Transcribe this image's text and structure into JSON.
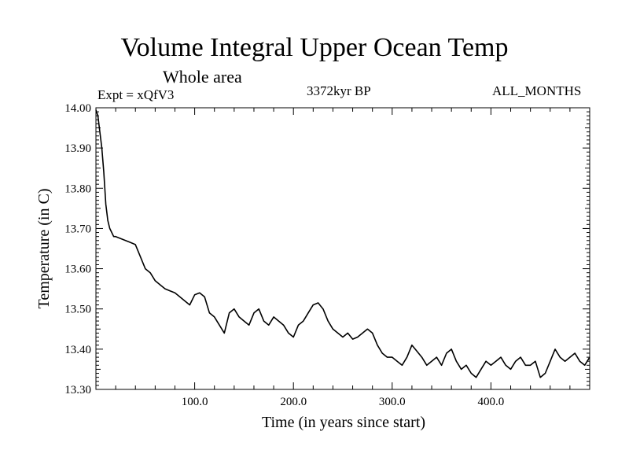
{
  "chart_data": {
    "type": "line",
    "title": "Volume Integral Upper Ocean Temp",
    "subtitle": "Whole area",
    "expt_label": "Expt = xQfV3",
    "period_label": "3372kyr BP",
    "months_label": "ALL_MONTHS",
    "xlabel": "Time (in years since start)",
    "ylabel": "Temperature (in C)",
    "xlim": [
      0,
      500
    ],
    "ylim": [
      13.3,
      14.0
    ],
    "xticks": [
      100,
      200,
      300,
      400
    ],
    "xtick_labels": [
      "100.0",
      "200.0",
      "300.0",
      "400.0"
    ],
    "yticks": [
      13.3,
      13.4,
      13.5,
      13.6,
      13.7,
      13.8,
      13.9,
      14.0
    ],
    "ytick_labels": [
      "13.30",
      "13.40",
      "13.50",
      "13.60",
      "13.70",
      "13.80",
      "13.90",
      "14.00"
    ],
    "grid": false,
    "series": [
      {
        "name": "Temperature",
        "color": "#000000",
        "x": [
          0,
          2,
          4,
          6,
          8,
          10,
          12,
          14,
          16,
          18,
          20,
          25,
          30,
          35,
          40,
          45,
          50,
          55,
          60,
          65,
          70,
          75,
          80,
          85,
          90,
          95,
          100,
          105,
          110,
          115,
          120,
          125,
          130,
          135,
          140,
          145,
          150,
          155,
          160,
          165,
          170,
          175,
          180,
          185,
          190,
          195,
          200,
          205,
          210,
          215,
          220,
          225,
          230,
          235,
          240,
          245,
          250,
          255,
          260,
          265,
          270,
          275,
          280,
          285,
          290,
          295,
          300,
          305,
          310,
          315,
          320,
          325,
          330,
          335,
          340,
          345,
          350,
          355,
          360,
          365,
          370,
          375,
          380,
          385,
          390,
          395,
          400,
          405,
          410,
          415,
          420,
          425,
          430,
          435,
          440,
          445,
          450,
          455,
          460,
          465,
          470,
          475,
          480,
          485,
          490,
          495,
          500
        ],
        "values": [
          13.995,
          13.98,
          13.94,
          13.9,
          13.84,
          13.76,
          13.72,
          13.7,
          13.69,
          13.68,
          13.68,
          13.675,
          13.67,
          13.665,
          13.66,
          13.63,
          13.6,
          13.59,
          13.57,
          13.56,
          13.55,
          13.545,
          13.54,
          13.53,
          13.52,
          13.51,
          13.535,
          13.54,
          13.53,
          13.49,
          13.48,
          13.46,
          13.44,
          13.49,
          13.5,
          13.48,
          13.47,
          13.46,
          13.49,
          13.5,
          13.47,
          13.46,
          13.48,
          13.47,
          13.46,
          13.44,
          13.43,
          13.46,
          13.47,
          13.49,
          13.51,
          13.515,
          13.5,
          13.47,
          13.45,
          13.44,
          13.43,
          13.44,
          13.425,
          13.43,
          13.44,
          13.45,
          13.44,
          13.41,
          13.39,
          13.38,
          13.38,
          13.37,
          13.36,
          13.38,
          13.41,
          13.395,
          13.38,
          13.36,
          13.37,
          13.38,
          13.36,
          13.39,
          13.4,
          13.37,
          13.35,
          13.36,
          13.34,
          13.33,
          13.35,
          13.37,
          13.36,
          13.37,
          13.38,
          13.36,
          13.35,
          13.37,
          13.38,
          13.36,
          13.36,
          13.37,
          13.33,
          13.34,
          13.37,
          13.4,
          13.38,
          13.37,
          13.38,
          13.39,
          13.37,
          13.36,
          13.38
        ]
      }
    ]
  }
}
